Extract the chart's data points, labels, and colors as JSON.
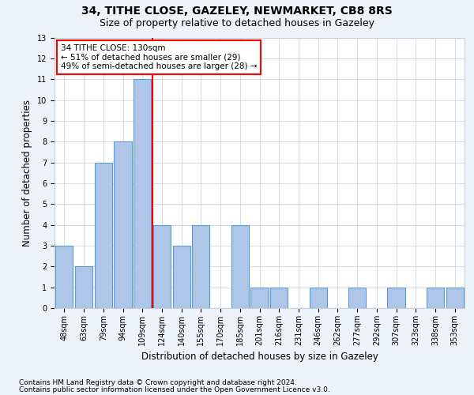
{
  "title1": "34, TITHE CLOSE, GAZELEY, NEWMARKET, CB8 8RS",
  "title2": "Size of property relative to detached houses in Gazeley",
  "xlabel": "Distribution of detached houses by size in Gazeley",
  "ylabel": "Number of detached properties",
  "categories": [
    "48sqm",
    "63sqm",
    "79sqm",
    "94sqm",
    "109sqm",
    "124sqm",
    "140sqm",
    "155sqm",
    "170sqm",
    "185sqm",
    "201sqm",
    "216sqm",
    "231sqm",
    "246sqm",
    "262sqm",
    "277sqm",
    "292sqm",
    "307sqm",
    "323sqm",
    "338sqm",
    "353sqm"
  ],
  "values": [
    3,
    2,
    7,
    8,
    11,
    4,
    3,
    4,
    0,
    4,
    1,
    1,
    0,
    1,
    0,
    1,
    0,
    1,
    0,
    1,
    1
  ],
  "bar_color": "#aec6e8",
  "bar_edge_color": "#5b9bd5",
  "red_line_x": 4.5,
  "annotation_text": "34 TITHE CLOSE: 130sqm\n← 51% of detached houses are smaller (29)\n49% of semi-detached houses are larger (28) →",
  "annotation_box_color": "white",
  "annotation_box_edge_color": "red",
  "ylim": [
    0,
    13
  ],
  "yticks": [
    0,
    1,
    2,
    3,
    4,
    5,
    6,
    7,
    8,
    9,
    10,
    11,
    12,
    13
  ],
  "footnote1": "Contains HM Land Registry data © Crown copyright and database right 2024.",
  "footnote2": "Contains public sector information licensed under the Open Government Licence v3.0.",
  "bg_color": "#eef2f9",
  "plot_bg_color": "#ffffff",
  "grid_color": "#c8d0e0",
  "title1_fontsize": 10,
  "title2_fontsize": 9,
  "xlabel_fontsize": 8.5,
  "ylabel_fontsize": 8.5,
  "tick_fontsize": 7,
  "annotation_fontsize": 7.5,
  "footnote_fontsize": 6.5
}
